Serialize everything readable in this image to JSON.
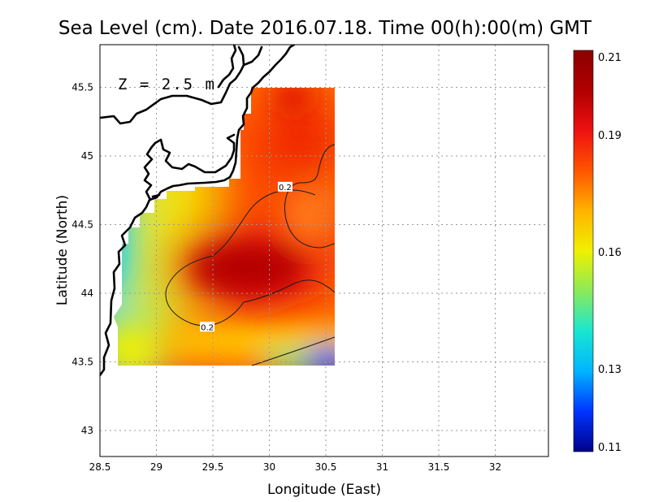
{
  "chart_data": {
    "type": "heatmap",
    "title": "Sea Level (cm). Date 2016.07.18. Time 00(h):00(m) GMT",
    "xlabel": "Longitude (East)",
    "ylabel": "Latitude (North)",
    "annotation": "Z = 2.5 m",
    "xlim": [
      28.5,
      32.4
    ],
    "ylim": [
      42.8,
      45.8
    ],
    "x_ticks": [
      "28.5",
      "29",
      "29.5",
      "30",
      "30.5",
      "31",
      "31.5",
      "32"
    ],
    "x_tick_values": [
      28.5,
      29,
      29.5,
      30,
      30.5,
      31,
      31.5,
      32
    ],
    "y_ticks": [
      "43",
      "43.5",
      "44",
      "44.5",
      "45",
      "45.5"
    ],
    "y_tick_values": [
      43,
      43.5,
      44,
      44.5,
      45,
      45.5
    ],
    "grid": true,
    "data_extent": {
      "lon": [
        28.62,
        30.55
      ],
      "lat": [
        43.48,
        45.5
      ]
    },
    "field_points": [
      {
        "lon": 29.75,
        "lat": 44.15,
        "value": 0.21
      },
      {
        "lon": 30.0,
        "lat": 45.25,
        "value": 0.2
      },
      {
        "lon": 30.35,
        "lat": 45.45,
        "value": 0.2
      },
      {
        "lon": 30.3,
        "lat": 44.5,
        "value": 0.195
      },
      {
        "lon": 29.7,
        "lat": 44.75,
        "value": 0.195
      },
      {
        "lon": 29.1,
        "lat": 44.5,
        "value": 0.17
      },
      {
        "lon": 28.8,
        "lat": 44.0,
        "value": 0.15
      },
      {
        "lon": 28.65,
        "lat": 44.3,
        "value": 0.14
      },
      {
        "lon": 30.45,
        "lat": 43.52,
        "value": 0.11
      },
      {
        "lon": 29.9,
        "lat": 43.62,
        "value": 0.18
      }
    ],
    "contour_labels": [
      {
        "text": "0.2",
        "lon": 30.14,
        "lat": 44.77
      },
      {
        "text": "0.2",
        "lon": 29.45,
        "lat": 43.75
      }
    ],
    "colorbar": {
      "min": 0.11,
      "max": 0.21,
      "ticks": [
        "0.21",
        "0.19",
        "0.16",
        "0.13",
        "0.11"
      ],
      "tick_values": [
        0.21,
        0.19,
        0.16,
        0.13,
        0.11
      ],
      "stops": [
        "#00008b",
        "#0033ff",
        "#00b4ff",
        "#19e6d2",
        "#8aea5a",
        "#f0f000",
        "#ffb300",
        "#ff5500",
        "#ee1111",
        "#b00000",
        "#8b0000"
      ]
    }
  }
}
